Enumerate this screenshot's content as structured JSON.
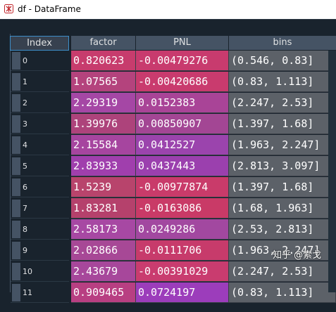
{
  "window": {
    "title": "df - DataFrame",
    "icon": "spyder-icon"
  },
  "table": {
    "columns": [
      "Index",
      "factor",
      "PNL",
      "bins"
    ],
    "rows": [
      {
        "index": "0",
        "factor": "0.820623",
        "pnl": "-0.00479276",
        "bins": "(0.546, 0.83]",
        "factor_color": "#c73c6d",
        "pnl_color": "#c83b6e"
      },
      {
        "index": "1",
        "factor": "1.07565",
        "pnl": "-0.00420686",
        "bins": "(0.83, 1.113]",
        "factor_color": "#b4437d",
        "pnl_color": "#c93b6e"
      },
      {
        "index": "2",
        "factor": "2.29319",
        "pnl": "0.0152383",
        "bins": "(2.247, 2.53]",
        "factor_color": "#a547a5",
        "pnl_color": "#a94497"
      },
      {
        "index": "3",
        "factor": "1.39976",
        "pnl": "0.00850907",
        "bins": "(1.397, 1.68]",
        "factor_color": "#ad437b",
        "pnl_color": "#a34694"
      },
      {
        "index": "4",
        "factor": "2.15584",
        "pnl": "0.0412527",
        "bins": "(1.963, 2.247]",
        "factor_color": "#a6459f",
        "pnl_color": "#9b44ad"
      },
      {
        "index": "5",
        "factor": "2.83933",
        "pnl": "0.0437443",
        "bins": "(2.813, 3.097]",
        "factor_color": "#a03fad",
        "pnl_color": "#9b40ae"
      },
      {
        "index": "6",
        "factor": "1.5239",
        "pnl": "-0.00977874",
        "bins": "(1.397, 1.68]",
        "factor_color": "#b8446c",
        "pnl_color": "#c93b6a"
      },
      {
        "index": "7",
        "factor": "1.83281",
        "pnl": "-0.0163086",
        "bins": "(1.68, 1.963]",
        "factor_color": "#b5416c",
        "pnl_color": "#c93a67"
      },
      {
        "index": "8",
        "factor": "2.58173",
        "pnl": "0.0249286",
        "bins": "(2.53, 2.813]",
        "factor_color": "#a748a3",
        "pnl_color": "#a248a0"
      },
      {
        "index": "9",
        "factor": "2.02866",
        "pnl": "-0.0111706",
        "bins": "(1.963, 2.247]",
        "factor_color": "#a74896",
        "pnl_color": "#c73b6b"
      },
      {
        "index": "10",
        "factor": "2.43679",
        "pnl": "-0.00391029",
        "bins": "(2.247, 2.53]",
        "factor_color": "#a7479b",
        "pnl_color": "#c93c6f"
      },
      {
        "index": "11",
        "factor": "0.909465",
        "pnl": "0.0724197",
        "bins": "(0.83, 1.113]",
        "factor_color": "#b83f82",
        "pnl_color": "#9c3dbb"
      }
    ]
  },
  "watermark": "知乎 @索戈"
}
